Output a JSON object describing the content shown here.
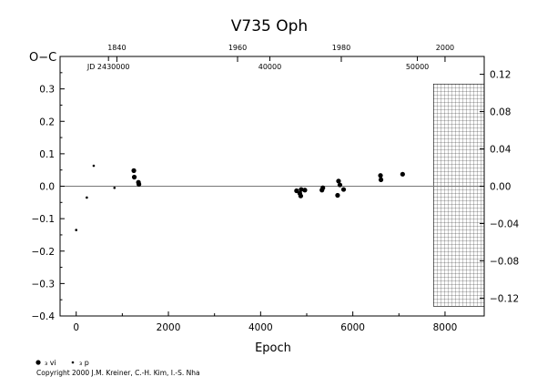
{
  "chart_data": {
    "type": "scatter",
    "title": "V735  Oph",
    "xlabel": "Epoch",
    "ylabel": "O−C",
    "xlim": [
      -350,
      8850
    ],
    "ylim": [
      -0.4,
      0.4
    ],
    "x_ticks": [
      0,
      2000,
      4000,
      6000,
      8000
    ],
    "y_ticks": [
      -0.4,
      -0.3,
      -0.2,
      -0.1,
      0.0,
      0.1,
      0.2,
      0.3
    ],
    "y_tick_labels": [
      "−0.4",
      "−0.3",
      "−0.2",
      "−0.1",
      "0.0",
      "0.1",
      "0.2",
      "0.3"
    ],
    "top_year_ticks": [
      "1840",
      "1960",
      "1980",
      "2000"
    ],
    "jd_labels": [
      "JD 2430000",
      "40000",
      "50000"
    ],
    "right_ticks": [
      "0.12",
      "0.08",
      "0.04",
      "0.00",
      "−0.04",
      "−0.08",
      "−0.12"
    ],
    "hatched_region": [
      7750,
      8850
    ],
    "zero_line": true,
    "series": [
      {
        "name": "₃ vi",
        "marker": "filled-circle",
        "points": [
          [
            1250,
            0.048
          ],
          [
            1260,
            0.028
          ],
          [
            1350,
            0.012
          ],
          [
            1360,
            0.006
          ],
          [
            4780,
            -0.014
          ],
          [
            4850,
            -0.022
          ],
          [
            4870,
            -0.03
          ],
          [
            4880,
            -0.01
          ],
          [
            4960,
            -0.012
          ],
          [
            5330,
            -0.012
          ],
          [
            5350,
            -0.005
          ],
          [
            5670,
            -0.028
          ],
          [
            5690,
            0.016
          ],
          [
            5720,
            0.004
          ],
          [
            5800,
            -0.01
          ],
          [
            6600,
            0.033
          ],
          [
            6610,
            0.02
          ],
          [
            7080,
            0.037
          ]
        ]
      },
      {
        "name": "₃ p",
        "marker": "small-dot",
        "points": [
          [
            0,
            -0.135
          ],
          [
            230,
            -0.035
          ],
          [
            380,
            0.063
          ],
          [
            830,
            -0.005
          ]
        ]
      }
    ],
    "legend": {
      "position": "bottom-left",
      "entries": [
        "₃ vi",
        "₃ p"
      ]
    }
  },
  "copyright": "Copyright 2000 J.M. Kreiner, C.-H. Kim, I.-S. Nha"
}
